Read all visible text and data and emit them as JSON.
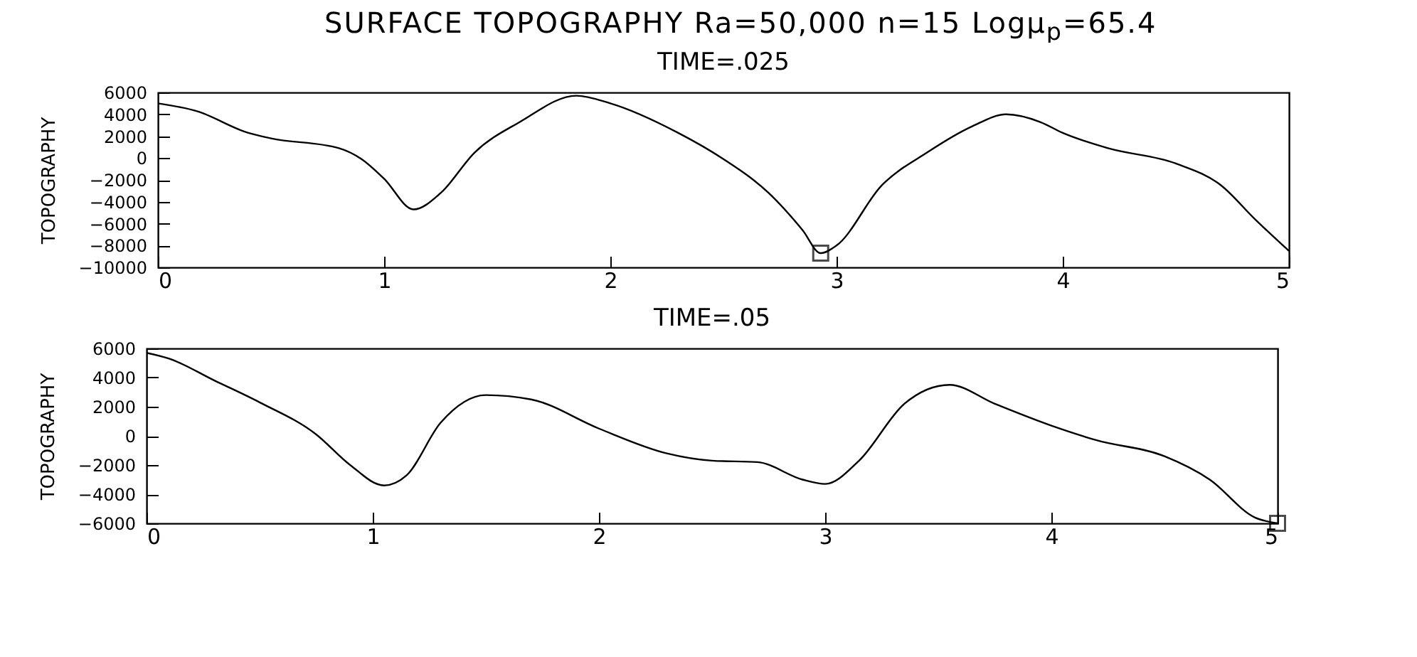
{
  "chart_data": [
    {
      "type": "line",
      "title": "SURFACE TOPOGRAPHY  Ra=50,000  n=15 Logμ$_{p}$=65.4",
      "subtitle": "TIME=.025",
      "ylabel": "TOPOGRAPHY",
      "grid": false,
      "xlim": [
        0,
        5
      ],
      "xticks": [
        0,
        1,
        2,
        3,
        4,
        5
      ],
      "ylim": [
        -10000,
        6000
      ],
      "yticks": [
        -10000,
        -8000,
        -6000,
        -4000,
        -2000,
        0,
        2000,
        4000,
        6000
      ],
      "series": [
        {
          "color": "#000000",
          "marker": "none",
          "x": [
            0,
            0.17,
            0.4,
            0.5,
            0.8,
            0.9,
            1.0,
            1.13,
            1.25,
            1.4,
            1.6,
            1.85,
            2.0,
            2.3,
            2.5,
            2.7,
            2.85,
            2.93,
            3.0,
            3.2,
            3.4,
            3.6,
            3.75,
            3.9,
            4.0,
            4.2,
            4.5,
            4.7,
            4.85,
            5.0
          ],
          "values": [
            5000,
            4300,
            2300,
            1800,
            900,
            -100,
            -1900,
            -4700,
            -3200,
            500,
            3300,
            5700,
            5000,
            2300,
            -100,
            -3200,
            -6600,
            -8700,
            -8000,
            -2500,
            500,
            2900,
            4000,
            3300,
            2300,
            900,
            -500,
            -2500,
            -5600,
            -8500
          ]
        },
        {
          "type": "scatter",
          "color": "#000000",
          "marker": "square",
          "x": [
            2.93
          ],
          "values": [
            -8700
          ]
        }
      ]
    },
    {
      "type": "line",
      "title": "TIME=.05",
      "ylabel": "TOPOGRAPHY",
      "grid": false,
      "xlim": [
        0,
        5
      ],
      "xticks": [
        0,
        1,
        2,
        3,
        4,
        5
      ],
      "ylim": [
        -6000,
        6000
      ],
      "yticks": [
        -6000,
        -4000,
        -2000,
        0,
        2000,
        4000,
        6000
      ],
      "series": [
        {
          "color": "#000000",
          "marker": "none",
          "x": [
            0,
            0.1,
            0.3,
            0.5,
            0.75,
            0.9,
            1.05,
            1.15,
            1.3,
            1.5,
            1.7,
            2.0,
            2.3,
            2.5,
            2.7,
            2.9,
            3.0,
            3.15,
            3.35,
            3.55,
            3.75,
            4.0,
            4.2,
            4.5,
            4.7,
            4.9,
            5.0
          ],
          "values": [
            5700,
            5300,
            3800,
            2300,
            100,
            -2000,
            -3400,
            -2700,
            900,
            2800,
            2500,
            500,
            -1200,
            -1700,
            -1800,
            -3000,
            -3300,
            -1700,
            2200,
            3500,
            2200,
            700,
            -300,
            -1400,
            -3000,
            -5600,
            -6000
          ]
        },
        {
          "type": "scatter",
          "color": "#000000",
          "marker": "square",
          "x": [
            5.0
          ],
          "values": [
            -6000
          ]
        }
      ]
    }
  ]
}
